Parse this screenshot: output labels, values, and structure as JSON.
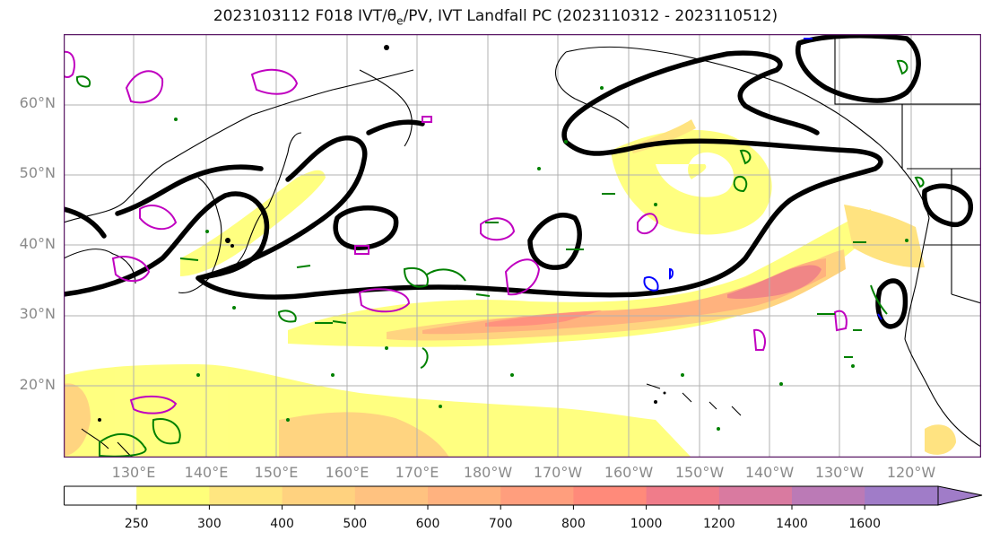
{
  "figure": {
    "title_main": "2023103112 F018 IVT/θ",
    "title_sub": "e",
    "title_rest": "/PV, IVT Landfall PC (2023110312 - 2023110512)"
  },
  "map": {
    "lat_labels": [
      "60°N",
      "50°N",
      "40°N",
      "30°N",
      "20°N"
    ],
    "lon_labels": [
      "130°E",
      "140°E",
      "150°E",
      "160°E",
      "170°E",
      "180°W",
      "170°W",
      "160°W",
      "150°W",
      "140°W",
      "130°W",
      "120°W"
    ],
    "gridlines": true,
    "frame_color": "#5b1a66",
    "fill_colors": [
      "#ffff7a",
      "#ffe27a",
      "#ffc87a",
      "#ffae78",
      "#ff8c78",
      "#f08080",
      "#e07a9a"
    ],
    "contour_colors": {
      "ivt_pc": "#000000",
      "theta_e": "#008000",
      "pv": "#c000c0",
      "blue": "#0000ff"
    }
  },
  "colorbar": {
    "labels": [
      "250",
      "300",
      "400",
      "500",
      "600",
      "700",
      "800",
      "1000",
      "1200",
      "1400",
      "1600"
    ],
    "colors": [
      "#ffffff",
      "#ffff7a",
      "#ffe680",
      "#ffd27f",
      "#ffc280",
      "#ffb27f",
      "#ff9e7d",
      "#ff8a7a",
      "#f07c8a",
      "#d97aa0",
      "#bb7ab6",
      "#a07cc8"
    ]
  }
}
